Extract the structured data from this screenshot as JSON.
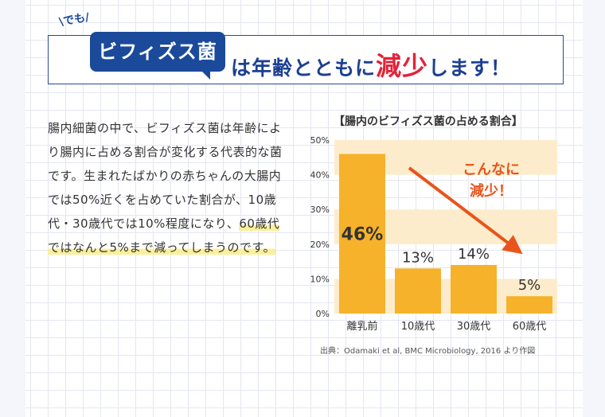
{
  "headline": {
    "tag": "\\でも/",
    "badge": "ビフィズス菌",
    "rest_before": "は年齢とともに",
    "rest_big": "減少",
    "rest_after": "します！"
  },
  "body": {
    "text_normal": "腸内細菌の中で、ビフィズス菌は年齢により腸内に占める割合が変化する代表的な菌です。生まれたばかりの赤ちゃんの大腸内では50%近くを占めていた割合が、10歳代・30歳代では10%程度になり、",
    "text_highlight": "60歳代ではなんと5%まで減ってしまうのです。"
  },
  "chart_data": {
    "type": "bar",
    "title": "【腸内のビフィズス菌の占める割合】",
    "categories": [
      "離乳前",
      "10歳代",
      "30歳代",
      "60歳代"
    ],
    "values": [
      46,
      13,
      14,
      5
    ],
    "value_labels": [
      "46%",
      "13%",
      "14%",
      "5%"
    ],
    "ylim": [
      0,
      50
    ],
    "yticks": [
      {
        "value": 0,
        "label": "0%"
      },
      {
        "value": 10,
        "label": "10%"
      },
      {
        "value": 20,
        "label": "20%"
      },
      {
        "value": 30,
        "label": "30%"
      },
      {
        "value": 40,
        "label": "40%"
      },
      {
        "value": 50,
        "label": "50%"
      }
    ],
    "annotation": "こんなに減少！",
    "source": "出典：Odamaki et al, BMC Microbiology, 2016 より作図",
    "bar_color": "#f5b22a",
    "band_color": "#fdeccb",
    "arrow_color": "#e8541c",
    "annotation_color": "#e8541c"
  }
}
